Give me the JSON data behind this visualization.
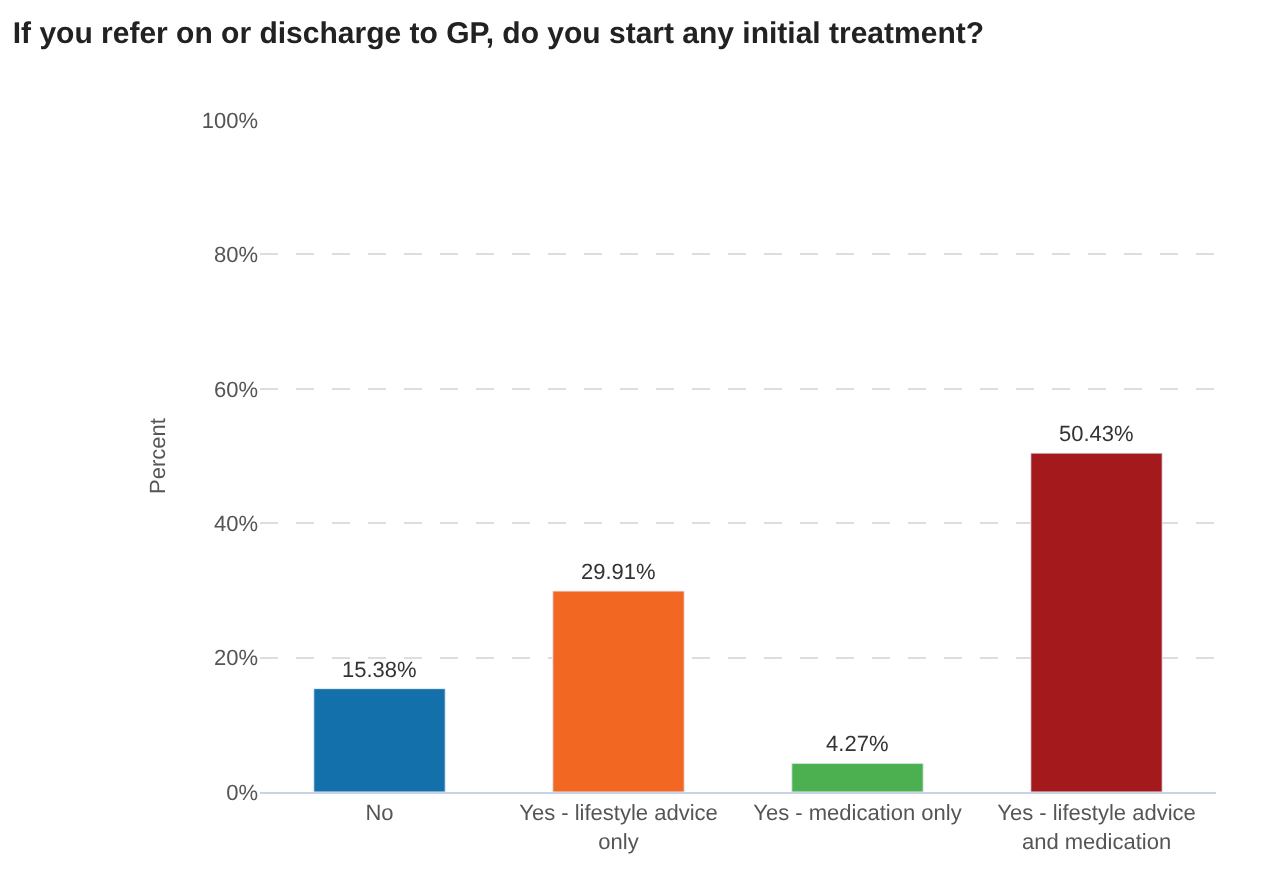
{
  "chart_data": {
    "type": "bar",
    "title": "If you refer on or discharge to GP, do you start any initial treatment?",
    "ylabel": "Percent",
    "categories": [
      "No",
      "Yes - lifestyle advice only",
      "Yes - medication only",
      "Yes - lifestyle advice and medication"
    ],
    "values": [
      15.38,
      29.91,
      4.27,
      50.43
    ],
    "colors": [
      "#1470ab",
      "#f26722",
      "#4caf50",
      "#a3191c"
    ],
    "value_labels": [
      "15.38%",
      "29.91%",
      "4.27%",
      "50.43%"
    ],
    "ylim": [
      0,
      100
    ],
    "yticks": [
      {
        "value": 0,
        "label": "0%"
      },
      {
        "value": 20,
        "label": "20%"
      },
      {
        "value": 40,
        "label": "40%"
      },
      {
        "value": 60,
        "label": "60%"
      },
      {
        "value": 80,
        "label": "80%"
      },
      {
        "value": 100,
        "label": "100%"
      }
    ],
    "grid": "y",
    "legend": false
  }
}
